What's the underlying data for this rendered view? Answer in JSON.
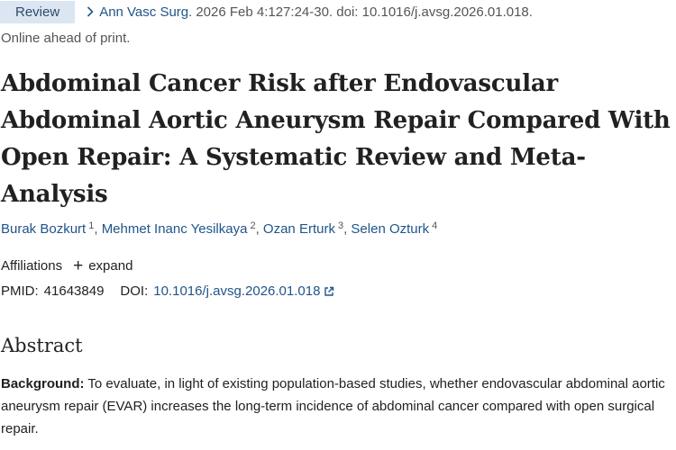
{
  "header": {
    "badge": "Review",
    "journal": "Ann Vasc Surg.",
    "citation": "2026 Feb 4:127:24-30. doi: 10.1016/j.avsg.2026.01.018.",
    "ahead_of_print": "Online ahead of print."
  },
  "article": {
    "title": "Abdominal Cancer Risk after Endovascular Abdominal Aortic Aneurysm Repair Compared With Open Repair: A Systematic Review and Meta-Analysis"
  },
  "authors": [
    {
      "name": "Burak Bozkurt",
      "aff": "1"
    },
    {
      "name": "Mehmet Inanc Yesilkaya",
      "aff": "2"
    },
    {
      "name": "Ozan Erturk",
      "aff": "3"
    },
    {
      "name": "Selen Ozturk",
      "aff": "4"
    }
  ],
  "affiliations": {
    "label": "Affiliations",
    "expand_label": "expand"
  },
  "identifiers": {
    "pmid_label": "PMID:",
    "pmid": "41643849",
    "doi_label": "DOI:",
    "doi": "10.1016/j.avsg.2026.01.018"
  },
  "abstract": {
    "heading": "Abstract",
    "background_label": "Background:",
    "background_text": " To evaluate, in light of existing population-based studies, whether endovascular abdominal aortic aneurysm repair (EVAR) increases the long-term incidence of abdominal cancer compared with open surgical repair."
  }
}
